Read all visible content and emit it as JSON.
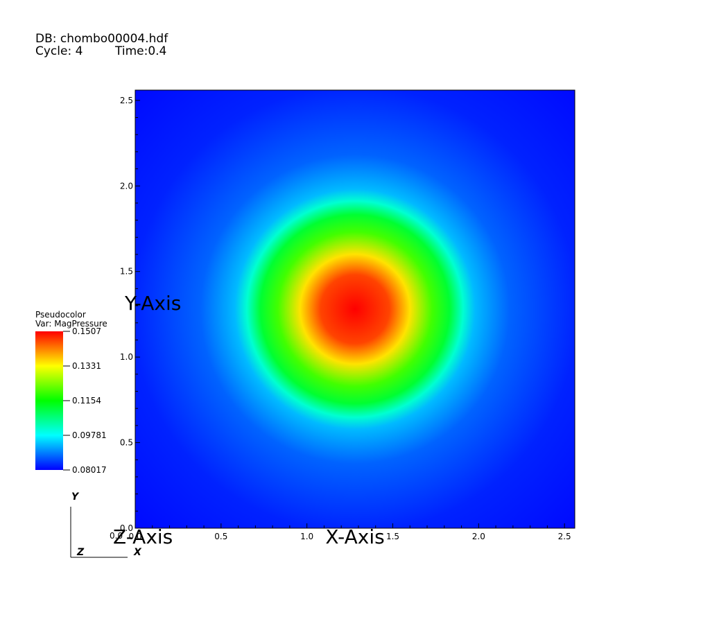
{
  "header": {
    "db": "DB: chombo00004.hdf",
    "cycle": "Cycle: 4",
    "time": "Time:0.4"
  },
  "legend": {
    "title": "Pseudocolor",
    "var": "Var: MagPressure",
    "min": 0.08017,
    "max": 0.1507,
    "tick_labels": [
      "0.1507",
      "0.1331",
      "0.1154",
      "0.09781",
      "0.08017"
    ],
    "colormap": [
      "#0000ff",
      "#00ffff",
      "#00ff00",
      "#ffff00",
      "#ff0000"
    ]
  },
  "triad": {
    "y": "Y",
    "z": "Z",
    "x": "X"
  },
  "chart_data": {
    "type": "heatmap",
    "title": "",
    "xlabel": "X-Axis",
    "ylabel": "Y-Axis",
    "zlabel": "Z-Axis",
    "xlim": [
      0.0,
      2.56
    ],
    "ylim": [
      0.0,
      2.56
    ],
    "x_ticks": [
      0.0,
      0.5,
      1.0,
      1.5,
      2.0,
      2.5
    ],
    "y_ticks": [
      0.0,
      0.5,
      1.0,
      1.5,
      2.0,
      2.5
    ],
    "x_tick_labels": [
      "0.0",
      "0.5",
      "1.0",
      "1.5",
      "2.0",
      "2.5"
    ],
    "y_tick_labels": [
      "0.0",
      "0.5",
      "1.0",
      "1.5",
      "2.0",
      "2.5"
    ],
    "z_tick_label": "0.0",
    "field": {
      "shape": "radial",
      "center": [
        1.28,
        1.28
      ],
      "value_at_center": 0.1507,
      "background_value": 0.08017,
      "radial_profile": [
        {
          "r": 0.0,
          "value": 0.1507
        },
        {
          "r": 0.2,
          "value": 0.146
        },
        {
          "r": 0.32,
          "value": 0.135
        },
        {
          "r": 0.45,
          "value": 0.12
        },
        {
          "r": 0.55,
          "value": 0.112
        },
        {
          "r": 0.63,
          "value": 0.101
        },
        {
          "r": 0.7,
          "value": 0.093
        },
        {
          "r": 0.9,
          "value": 0.087
        },
        {
          "r": 1.3,
          "value": 0.0825
        },
        {
          "r": 1.9,
          "value": 0.0805
        }
      ]
    }
  }
}
